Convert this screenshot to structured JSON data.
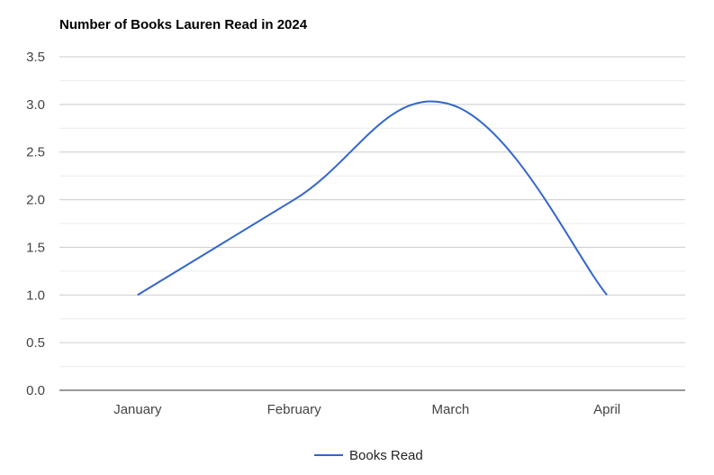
{
  "chart_data": {
    "type": "line",
    "title": "Number of Books Lauren Read in 2024",
    "xlabel": "",
    "ylabel": "",
    "categories": [
      "January",
      "February",
      "March",
      "April"
    ],
    "series": [
      {
        "name": "Books Read",
        "values": [
          1,
          2,
          3,
          1
        ],
        "color": "#3366cc"
      }
    ],
    "ylim": [
      0,
      3.5
    ],
    "y_ticks": [
      "0.0",
      "0.5",
      "1.0",
      "1.5",
      "2.0",
      "2.5",
      "3.0",
      "3.5"
    ],
    "curve": "smooth",
    "grid": true,
    "legend_position": "bottom",
    "colors": {
      "gridline": "#cccccc",
      "minor_gridline": "#ebebeb",
      "baseline": "#333333"
    }
  }
}
